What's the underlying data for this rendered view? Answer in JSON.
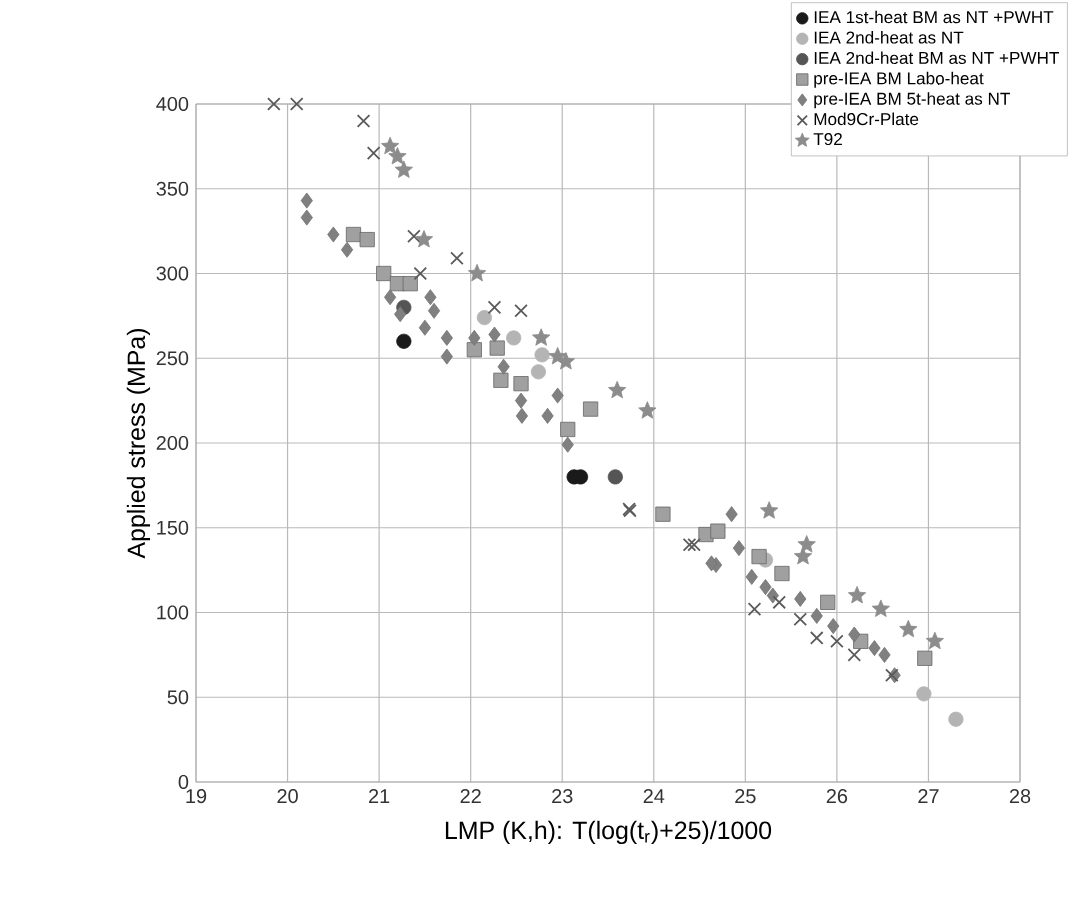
{
  "chart_data": {
    "type": "scatter",
    "xlabel": "LMP (K,h): T(log(t$_{r}$)+25)/1000",
    "ylabel": "Applied stress (MPa)",
    "xlim": [
      19,
      28
    ],
    "ylim": [
      0,
      400
    ],
    "xticks": [
      19,
      20,
      21,
      22,
      23,
      24,
      25,
      26,
      27,
      28
    ],
    "yticks": [
      0,
      50,
      100,
      150,
      200,
      250,
      300,
      350,
      400
    ],
    "grid": true,
    "legend": "top right",
    "series": [
      {
        "name": "IEA 1st-heat BM as NT +PWHT",
        "color": "#1a1a1a",
        "marker": "circle",
        "x": [
          21.27,
          23.13,
          23.2
        ],
        "values": [
          260,
          180,
          180
        ]
      },
      {
        "name": "IEA 2nd-heat as NT",
        "color": "#b4b4b4",
        "marker": "circle",
        "x": [
          22.15,
          22.47,
          22.78,
          22.74,
          25.22,
          26.95,
          27.3
        ],
        "values": [
          274,
          262,
          252,
          242,
          131,
          52,
          37
        ]
      },
      {
        "name": "IEA 2nd-heat BM as NT +PWHT",
        "color": "#555555",
        "marker": "circle",
        "x": [
          21.27,
          23.58
        ],
        "values": [
          280,
          180
        ]
      },
      {
        "name": "pre-IEA BM Labo-heat",
        "color": "#a0a0a0",
        "marker": "square",
        "x": [
          20.72,
          20.87,
          21.05,
          21.2,
          21.34,
          22.04,
          22.29,
          22.33,
          22.55,
          23.06,
          23.31,
          24.1,
          24.57,
          24.7,
          25.15,
          25.4,
          25.9,
          26.26,
          26.96
        ],
        "values": [
          323,
          320,
          300,
          294,
          294,
          255,
          256,
          237,
          235,
          208,
          220,
          158,
          146,
          148,
          133,
          123,
          106,
          83,
          73
        ]
      },
      {
        "name": "pre-IEA BM 5t-heat as NT",
        "color": "#808080",
        "marker": "diamond",
        "x": [
          20.21,
          20.21,
          20.5,
          20.65,
          21.12,
          21.23,
          21.56,
          21.6,
          21.5,
          21.74,
          21.74,
          22.04,
          22.26,
          22.36,
          22.55,
          22.84,
          22.95,
          22.56,
          23.06,
          24.68,
          24.63,
          24.85,
          24.93,
          25.07,
          25.22,
          25.3,
          25.6,
          25.78,
          25.96,
          26.19,
          26.41,
          26.52,
          26.63
        ],
        "values": [
          343,
          333,
          323,
          314,
          286,
          276,
          286,
          278,
          268,
          262,
          251,
          262,
          264,
          245,
          225,
          216,
          228,
          216,
          199,
          128,
          129,
          158,
          138,
          121,
          115,
          110,
          108,
          98,
          92,
          87,
          79,
          75,
          63
        ]
      },
      {
        "name": "Mod9Cr-Plate",
        "color": "#5a5a5a",
        "marker": "cross",
        "x": [
          19.85,
          20.1,
          20.83,
          20.94,
          21.38,
          21.45,
          21.85,
          22.26,
          22.55,
          23.73,
          24.39,
          23.74,
          24.44,
          25.1,
          25.37,
          25.6,
          25.78,
          26.0,
          26.19,
          26.6
        ],
        "values": [
          400,
          400,
          390,
          371,
          322,
          300,
          309,
          280,
          278,
          161,
          140,
          160,
          140,
          102,
          106,
          96,
          85,
          83,
          75,
          63
        ]
      },
      {
        "name": "T92",
        "color": "#8c8c8c",
        "marker": "star",
        "x": [
          21.12,
          21.2,
          21.27,
          21.49,
          22.07,
          22.77,
          22.95,
          23.04,
          23.6,
          23.93,
          25.26,
          25.67,
          25.63,
          26.22,
          26.48,
          26.78,
          27.07
        ],
        "values": [
          375,
          369,
          361,
          320,
          300,
          262,
          251,
          248,
          231,
          219,
          160,
          140,
          133,
          110,
          102,
          90,
          83
        ]
      }
    ]
  }
}
